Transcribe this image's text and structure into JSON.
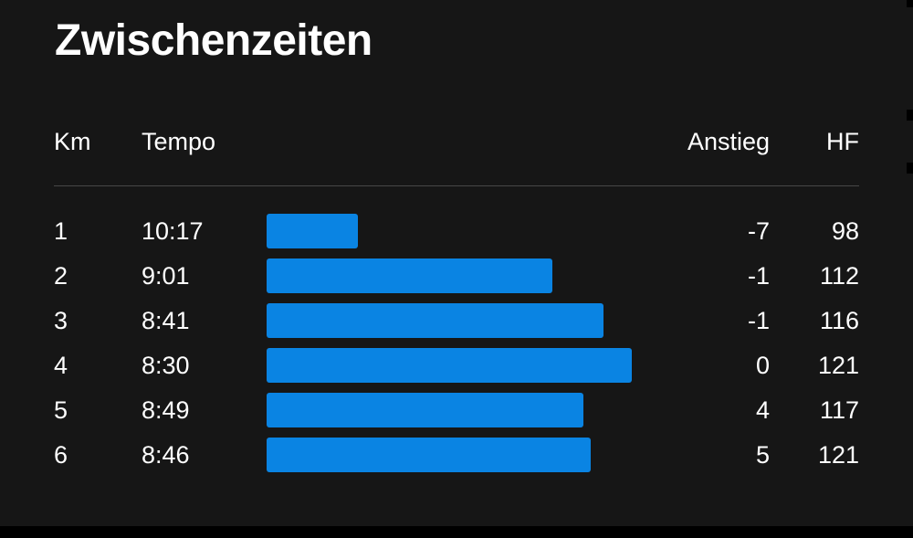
{
  "title": "Zwischenzeiten",
  "headers": {
    "km": "Km",
    "tempo": "Tempo",
    "anstieg": "Anstieg",
    "hf": "HF"
  },
  "bar_color": "#0a84e3",
  "splits": [
    {
      "km": "1",
      "tempo": "10:17",
      "pace_seconds": 617,
      "anstieg": "-7",
      "hf": "98"
    },
    {
      "km": "2",
      "tempo": "9:01",
      "pace_seconds": 541,
      "anstieg": "-1",
      "hf": "112"
    },
    {
      "km": "3",
      "tempo": "8:41",
      "pace_seconds": 521,
      "anstieg": "-1",
      "hf": "116"
    },
    {
      "km": "4",
      "tempo": "8:30",
      "pace_seconds": 510,
      "anstieg": "0",
      "hf": "121"
    },
    {
      "km": "5",
      "tempo": "8:49",
      "pace_seconds": 529,
      "anstieg": "4",
      "hf": "117"
    },
    {
      "km": "6",
      "tempo": "8:46",
      "pace_seconds": 526,
      "anstieg": "5",
      "hf": "121"
    }
  ]
}
